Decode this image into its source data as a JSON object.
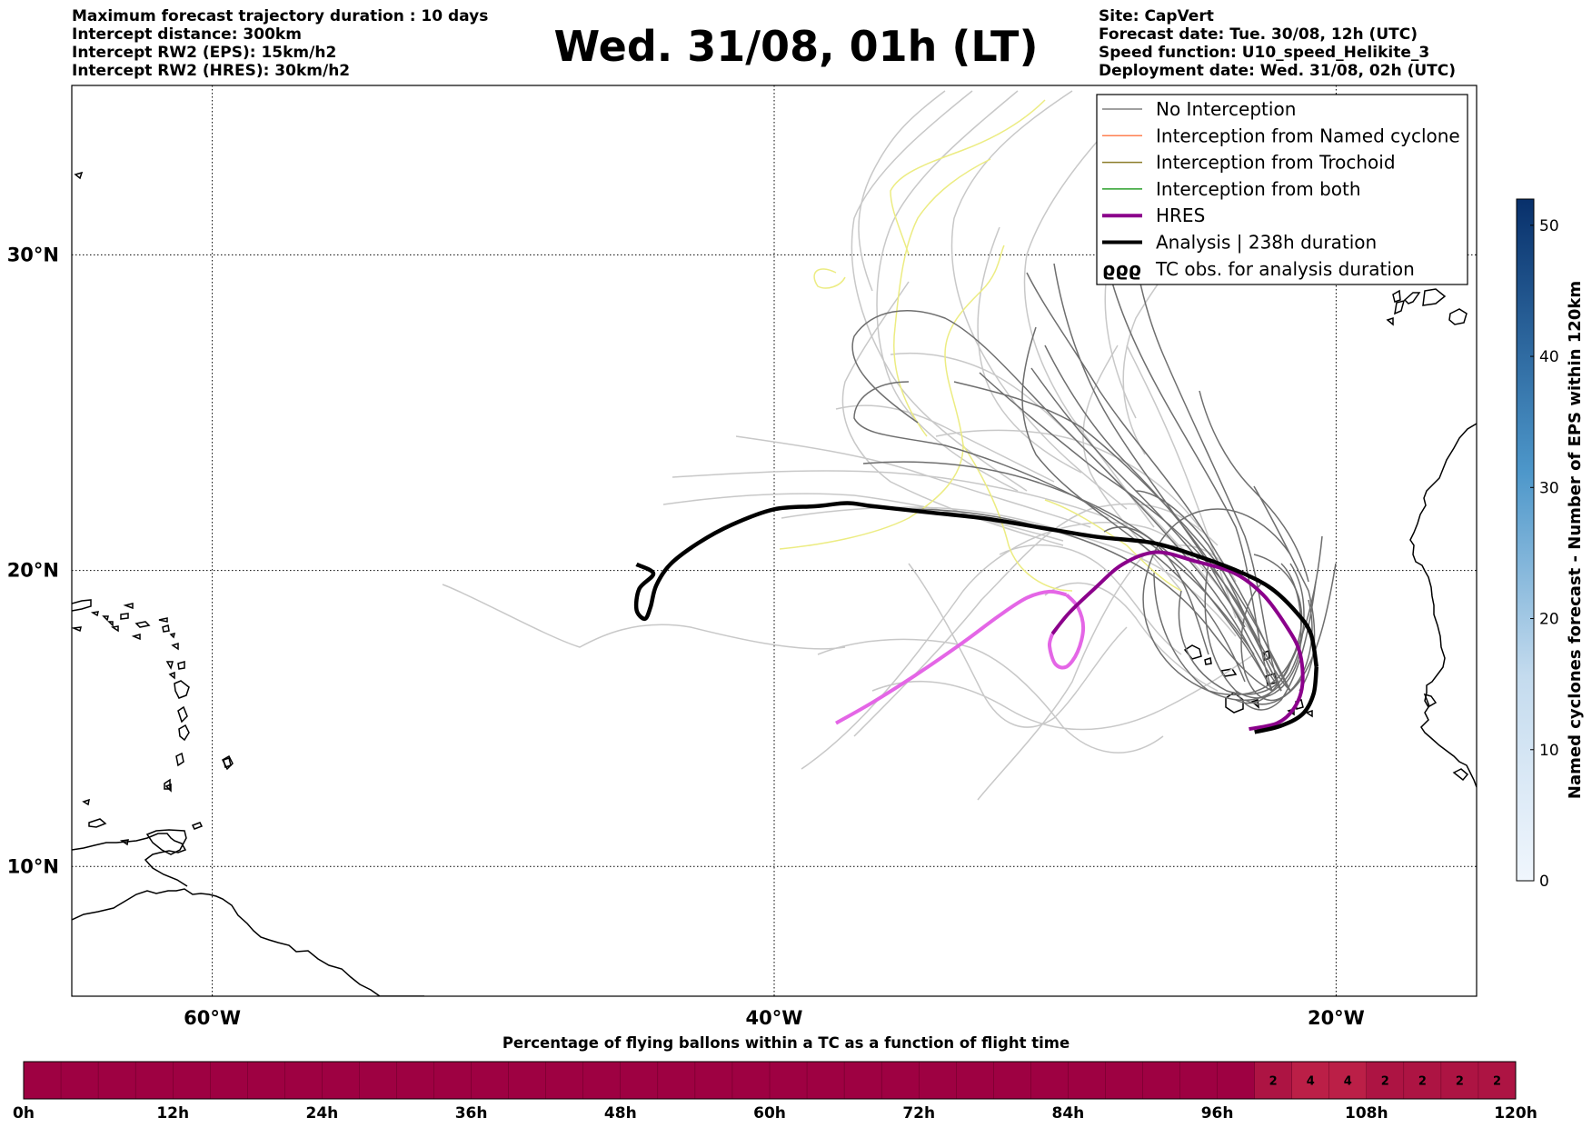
{
  "header": {
    "left": [
      "Maximum forecast trajectory duration : 10 days",
      "Intercept distance: 300km",
      "Intercept RW2 (EPS):  15km/h2",
      "Intercept RW2 (HRES): 30km/h2"
    ],
    "title": "Wed. 31/08, 01h (LT)",
    "right": [
      "Site: CapVert",
      "Forecast date: Tue. 30/08, 12h (UTC)",
      "Speed function: U10_speed_Helikite_3",
      "Deployment date: Wed. 31/08, 02h (UTC)"
    ]
  },
  "map": {
    "lat_labels": [
      {
        "lat": 30,
        "label": "30°N"
      },
      {
        "lat": 20,
        "label": "20°N"
      },
      {
        "lat": 10,
        "label": "10°N"
      }
    ],
    "lon_labels": [
      {
        "lon": -60,
        "label": "60°W"
      },
      {
        "lon": -40,
        "label": "40°W"
      },
      {
        "lon": -20,
        "label": "20°W"
      }
    ],
    "extent": {
      "lon": [
        -65,
        -15
      ],
      "lat": [
        5.5,
        35
      ]
    }
  },
  "legend": {
    "items": [
      {
        "label": "No Interception",
        "color": "#808080",
        "width": 1.5
      },
      {
        "label": "Interception from Named cyclone",
        "color": "#ff7f50",
        "width": 1.5
      },
      {
        "label": "Interception from Trochoid",
        "color": "#8b7d2a",
        "width": 1.5
      },
      {
        "label": "Interception from both",
        "color": "#2ca02c",
        "width": 1.5
      },
      {
        "label": "HRES",
        "color": "#8b008b",
        "width": 4
      },
      {
        "label": "Analysis | 238h duration",
        "color": "#000000",
        "width": 4
      },
      {
        "label": "TC obs. for analysis duration",
        "symbol": "ϱϱϱ"
      }
    ]
  },
  "colorbar": {
    "label": "Named cyclones forecast - Number of EPS within 120km",
    "ticks": [
      "0",
      "10",
      "20",
      "30",
      "40",
      "50"
    ],
    "max": 52
  },
  "timebar": {
    "title": "Percentage of flying ballons within a TC as a function of flight time",
    "hour_labels": [
      "0h",
      "12h",
      "24h",
      "36h",
      "48h",
      "60h",
      "72h",
      "84h",
      "96h",
      "108h",
      "120h"
    ],
    "bin_hours": 3,
    "percent_by_bin": [
      0,
      0,
      0,
      0,
      0,
      0,
      0,
      0,
      0,
      0,
      0,
      0,
      0,
      0,
      0,
      0,
      0,
      0,
      0,
      0,
      0,
      0,
      0,
      0,
      0,
      0,
      0,
      0,
      0,
      0,
      0,
      0,
      0,
      2,
      4,
      4,
      2,
      2,
      2,
      2
    ],
    "base_color": "#9e0142",
    "label_color": "#b5193f"
  },
  "tracks": {
    "analysis": [
      [
        -20.7,
        16.8
      ],
      [
        -20.9,
        17.9
      ],
      [
        -21.4,
        18.6
      ],
      [
        -22.3,
        19.4
      ],
      [
        -23.3,
        19.9
      ],
      [
        -24.7,
        20.4
      ],
      [
        -26.5,
        20.9
      ],
      [
        -28.5,
        21.1
      ],
      [
        -30.5,
        21.4
      ],
      [
        -32.5,
        21.7
      ],
      [
        -34.5,
        21.9
      ],
      [
        -36.5,
        22.1
      ],
      [
        -37.4,
        22.2
      ],
      [
        -38.5,
        22.1
      ],
      [
        -40,
        22
      ],
      [
        -41.5,
        21.5
      ],
      [
        -42.7,
        20.9
      ],
      [
        -43.7,
        20.2
      ],
      [
        -44.2,
        19.5
      ],
      [
        -44.4,
        18.8
      ],
      [
        -44.6,
        18.4
      ],
      [
        -44.9,
        18.7
      ],
      [
        -44.8,
        19.4
      ],
      [
        -44.3,
        19.9
      ],
      [
        -44.9,
        20.2
      ]
    ],
    "analysis_tail": [
      [
        -20.7,
        16.8
      ],
      [
        -20.8,
        15.9
      ],
      [
        -21.2,
        15.2
      ],
      [
        -22.0,
        14.8
      ],
      [
        -22.9,
        14.6
      ]
    ],
    "hres": [
      [
        -23.1,
        14.7
      ],
      [
        -22.1,
        14.9
      ],
      [
        -21.5,
        15.4
      ],
      [
        -21.2,
        16.2
      ],
      [
        -21.3,
        17.3
      ],
      [
        -21.8,
        18.2
      ],
      [
        -22.6,
        19.2
      ],
      [
        -23.6,
        19.9
      ],
      [
        -25,
        20.3
      ],
      [
        -26.4,
        20.6
      ],
      [
        -27.6,
        20.2
      ],
      [
        -28.6,
        19.4
      ],
      [
        -29.5,
        18.6
      ],
      [
        -30.1,
        17.9
      ]
    ],
    "hres_light": [
      [
        -29.6,
        19.2
      ],
      [
        -30.2,
        19.3
      ],
      [
        -31,
        19.1
      ],
      [
        -32,
        18.5
      ],
      [
        -33.3,
        17.6
      ],
      [
        -35,
        16.5
      ],
      [
        -36.5,
        15.6
      ],
      [
        -37.8,
        14.9
      ]
    ],
    "hres_light_loop": [
      [
        -29.6,
        19.2
      ],
      [
        -29.2,
        18.8
      ],
      [
        -29.0,
        18.1
      ],
      [
        -29.2,
        17.3
      ],
      [
        -29.6,
        16.8
      ],
      [
        -30.0,
        16.9
      ],
      [
        -30.2,
        17.5
      ],
      [
        -30.1,
        17.9
      ]
    ]
  }
}
